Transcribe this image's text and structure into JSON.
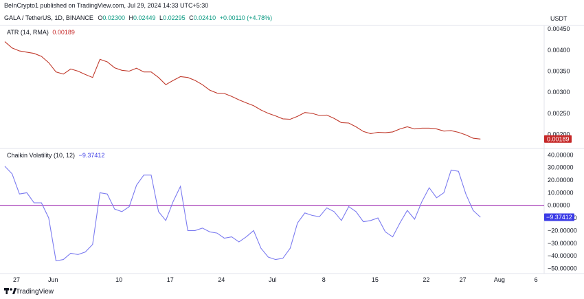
{
  "header": {
    "publisher": "BeInCrypto1 published on TradingView.com, Jul 29, 2024 14:33 UTC+5:30",
    "symbol": "GALA / TetherUS, 1D, BINANCE",
    "ohlc": [
      {
        "label": "O",
        "value": "0.02300"
      },
      {
        "label": "H",
        "value": "0.02449"
      },
      {
        "label": "L",
        "value": "0.02295"
      },
      {
        "label": "C",
        "value": "0.02410"
      }
    ],
    "change": "+0.00110 (+4.78%)",
    "currency": "USDT"
  },
  "footer": {
    "logo_text": "TradingView"
  },
  "colors": {
    "atr_line": "#c0392b",
    "chaikin_line": "#7b7bf0",
    "zero_line": "#9c27b0",
    "atr_badge": "#c62828",
    "chaikin_badge": "#3b3be6",
    "ohlc_green": "#089981"
  },
  "chart_data": [
    {
      "type": "line",
      "title": "ATR (14, RMA)",
      "last_value_label": "0.00189",
      "yticks": [
        "0.00450",
        "0.00400",
        "0.00350",
        "0.00300",
        "0.00250",
        "0.00200"
      ],
      "ylim": [
        0.0017,
        0.0046
      ],
      "series": [
        {
          "values": [
            0.0042,
            0.00405,
            0.00398,
            0.00395,
            0.00392,
            0.00385,
            0.0037,
            0.00348,
            0.00343,
            0.00355,
            0.0035,
            0.00342,
            0.00335,
            0.00378,
            0.00372,
            0.00358,
            0.00352,
            0.0035,
            0.00357,
            0.00348,
            0.00348,
            0.00335,
            0.00318,
            0.00328,
            0.00337,
            0.00335,
            0.00328,
            0.00318,
            0.00305,
            0.00298,
            0.00297,
            0.0029,
            0.00282,
            0.00275,
            0.00268,
            0.00258,
            0.0025,
            0.00244,
            0.00237,
            0.00236,
            0.00243,
            0.00252,
            0.0025,
            0.00245,
            0.00246,
            0.00238,
            0.00228,
            0.00227,
            0.00218,
            0.00207,
            0.00202,
            0.00205,
            0.00204,
            0.00206,
            0.00213,
            0.00218,
            0.00213,
            0.00215,
            0.00215,
            0.00213,
            0.00208,
            0.00209,
            0.00205,
            0.00199,
            0.00191,
            0.00189
          ]
        }
      ]
    },
    {
      "type": "line",
      "title": "Chaikin Volatility (10, 12)",
      "last_value_label": "−9.37412",
      "yticks": [
        "40.00000",
        "30.00000",
        "20.00000",
        "10.00000",
        "0.00000",
        "−10.00000",
        "−20.00000",
        "−30.00000",
        "−40.00000",
        "−50.00000"
      ],
      "ylim": [
        -53,
        44
      ],
      "zero_line": 0,
      "series": [
        {
          "values": [
            31,
            25,
            9,
            10,
            2,
            2,
            -10,
            -44,
            -43,
            -38,
            -39,
            -37,
            -31,
            10,
            9,
            -3,
            -5,
            -1,
            16,
            24,
            24,
            -5,
            -12,
            3,
            15,
            -20,
            -20,
            -18,
            -21,
            -22,
            -26,
            -25,
            -29,
            -25,
            -20,
            -34,
            -41,
            -43,
            -42,
            -34,
            -14,
            -6,
            -8,
            -9,
            -2,
            -5,
            -12,
            -1,
            -5,
            -13,
            -12,
            -10,
            -21,
            -25,
            -14,
            -4,
            -11,
            3,
            14,
            6,
            10,
            28,
            27,
            9,
            -4,
            -9.4
          ]
        }
      ]
    }
  ],
  "x_axis": {
    "labels": [
      {
        "text": "27",
        "index": 0
      },
      {
        "text": "Jun",
        "index": 5
      },
      {
        "text": "10",
        "index": 14
      },
      {
        "text": "17",
        "index": 21
      },
      {
        "text": "24",
        "index": 28
      },
      {
        "text": "Jul",
        "index": 35
      },
      {
        "text": "8",
        "index": 42
      },
      {
        "text": "15",
        "index": 49
      },
      {
        "text": "22",
        "index": 56
      },
      {
        "text": "27",
        "index": 61
      },
      {
        "text": "Aug",
        "index": 66
      },
      {
        "text": "6",
        "index": 71
      }
    ]
  }
}
